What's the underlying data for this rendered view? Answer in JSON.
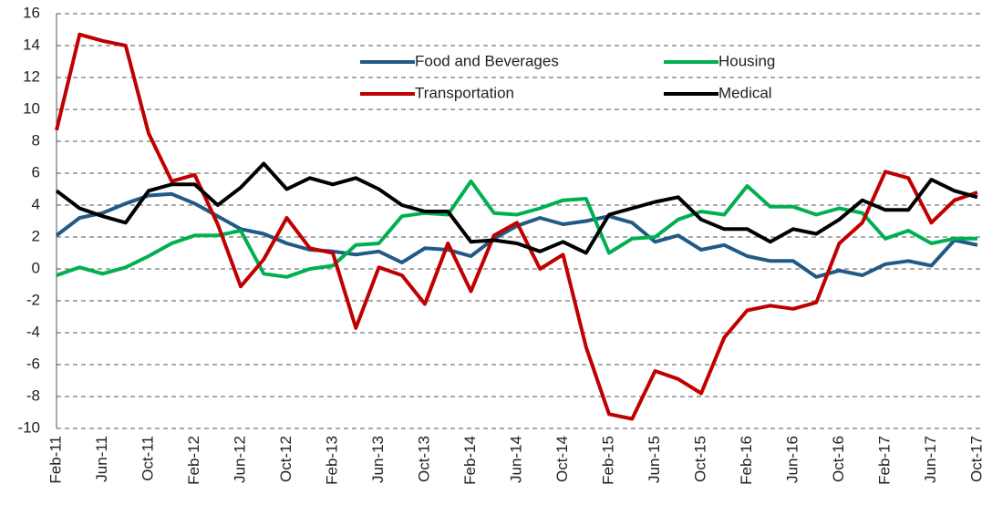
{
  "chart_data": {
    "type": "line",
    "categories": [
      "Feb-11",
      null,
      "Jun-11",
      null,
      "Oct-11",
      null,
      "Feb-12",
      null,
      "Jun-12",
      null,
      "Oct-12",
      null,
      "Feb-13",
      null,
      "Jun-13",
      null,
      "Oct-13",
      null,
      "Feb-14",
      null,
      "Jun-14",
      null,
      "Oct-14",
      null,
      "Feb-15",
      null,
      "Jun-15",
      null,
      "Oct-15",
      null,
      "Feb-16",
      null,
      "Jun-16",
      null,
      "Oct-16",
      null,
      "Feb-17",
      null,
      "Jun-17",
      null,
      "Oct-17"
    ],
    "series": [
      {
        "name": "Food and Beverages",
        "color": "#215a86",
        "values": [
          2.1,
          3.2,
          3.5,
          4.1,
          4.6,
          4.7,
          4.1,
          3.3,
          2.5,
          2.2,
          1.6,
          1.2,
          1.1,
          0.9,
          1.1,
          0.4,
          1.3,
          1.2,
          0.8,
          1.9,
          2.7,
          3.2,
          2.8,
          3.0,
          3.3,
          2.9,
          1.7,
          2.1,
          1.2,
          1.5,
          0.8,
          0.5,
          0.5,
          -0.5,
          -0.1,
          -0.4,
          0.3,
          0.5,
          0.2,
          1.8,
          1.5
        ]
      },
      {
        "name": "Housing",
        "color": "#00b050",
        "values": [
          -0.4,
          0.1,
          -0.3,
          0.1,
          0.8,
          1.6,
          2.1,
          2.1,
          2.4,
          -0.3,
          -0.5,
          0.0,
          0.2,
          1.5,
          1.6,
          3.3,
          3.5,
          3.4,
          5.5,
          3.5,
          3.4,
          3.8,
          4.3,
          4.4,
          1.0,
          1.9,
          2.0,
          3.1,
          3.6,
          3.4,
          5.2,
          3.9,
          3.9,
          3.4,
          3.8,
          3.5,
          1.9,
          2.4,
          1.6,
          1.9,
          1.9
        ]
      },
      {
        "name": "Transportation",
        "color": "#c00000",
        "values": [
          8.7,
          14.7,
          14.3,
          14.0,
          8.5,
          5.5,
          5.9,
          2.8,
          -1.1,
          0.6,
          3.2,
          1.3,
          1.0,
          -3.7,
          0.1,
          -0.4,
          -2.2,
          1.6,
          -1.4,
          2.1,
          2.9,
          0.0,
          0.9,
          -4.9,
          -9.1,
          -9.4,
          -6.4,
          -6.9,
          -7.8,
          -4.3,
          -2.6,
          -2.3,
          -2.5,
          -2.1,
          1.6,
          2.9,
          6.1,
          5.7,
          2.9,
          4.3,
          4.8
        ]
      },
      {
        "name": "Medical",
        "color": "#000000",
        "values": [
          4.9,
          3.8,
          3.3,
          2.9,
          4.9,
          5.3,
          5.3,
          4.0,
          5.1,
          6.6,
          5.0,
          5.7,
          5.3,
          5.7,
          5.0,
          4.0,
          3.6,
          3.6,
          1.7,
          1.8,
          1.6,
          1.1,
          1.7,
          1.0,
          3.4,
          3.8,
          4.2,
          4.5,
          3.1,
          2.5,
          2.5,
          1.7,
          2.5,
          2.2,
          3.1,
          4.3,
          3.7,
          3.7,
          5.6,
          4.9,
          4.5
        ]
      }
    ],
    "ylim": [
      -10,
      16
    ],
    "yticks": [
      -10,
      -8,
      -6,
      -4,
      -2,
      0,
      2,
      4,
      6,
      8,
      10,
      12,
      14,
      16
    ],
    "grid": true
  }
}
